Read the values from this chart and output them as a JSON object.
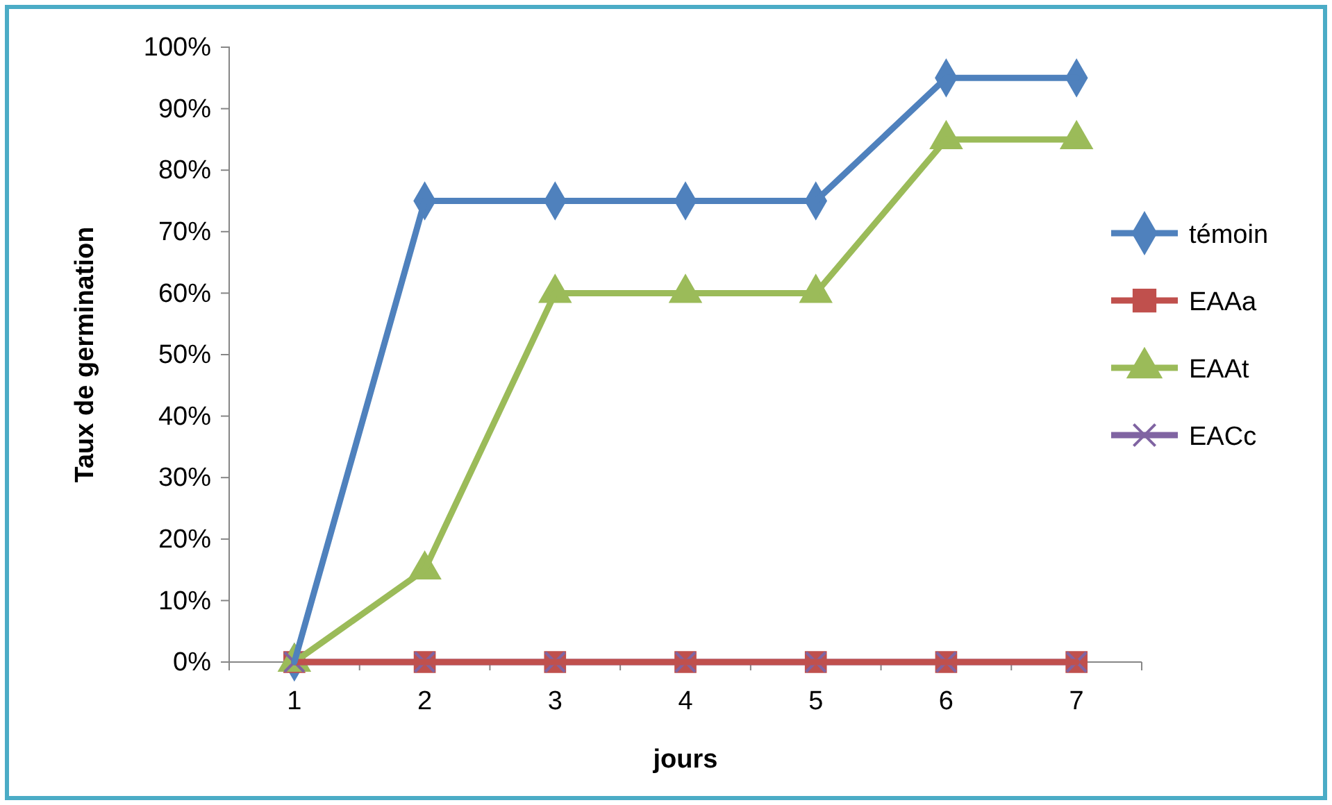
{
  "chart_data": {
    "type": "line",
    "xlabel": "jours",
    "ylabel": "Taux de germination",
    "categories": [
      "1",
      "2",
      "3",
      "4",
      "5",
      "6",
      "7"
    ],
    "series": [
      {
        "name": "témoin",
        "color": "#4f81bd",
        "marker": "diamond",
        "values": [
          0,
          75,
          75,
          75,
          75,
          95,
          95
        ]
      },
      {
        "name": "EAAa",
        "color": "#c0504d",
        "marker": "square",
        "values": [
          0,
          0,
          0,
          0,
          0,
          0,
          0
        ]
      },
      {
        "name": "EAAt",
        "color": "#9bbb59",
        "marker": "triangle",
        "values": [
          0,
          15,
          60,
          60,
          60,
          85,
          85
        ]
      },
      {
        "name": "EACc",
        "color": "#8064a2",
        "marker": "cross",
        "values": [
          0,
          0,
          0,
          0,
          0,
          0,
          0
        ]
      }
    ],
    "ylim": [
      0,
      100
    ],
    "yticks": [
      {
        "value": 0,
        "label": "0%"
      },
      {
        "value": 10,
        "label": "10%"
      },
      {
        "value": 20,
        "label": "20%"
      },
      {
        "value": 30,
        "label": "30%"
      },
      {
        "value": 40,
        "label": "40%"
      },
      {
        "value": 50,
        "label": "50%"
      },
      {
        "value": 60,
        "label": "60%"
      },
      {
        "value": 70,
        "label": "70%"
      },
      {
        "value": 80,
        "label": "80%"
      },
      {
        "value": 90,
        "label": "90%"
      },
      {
        "value": 100,
        "label": "100%"
      }
    ],
    "grid": false,
    "legend": "right",
    "line_style": "solid"
  }
}
